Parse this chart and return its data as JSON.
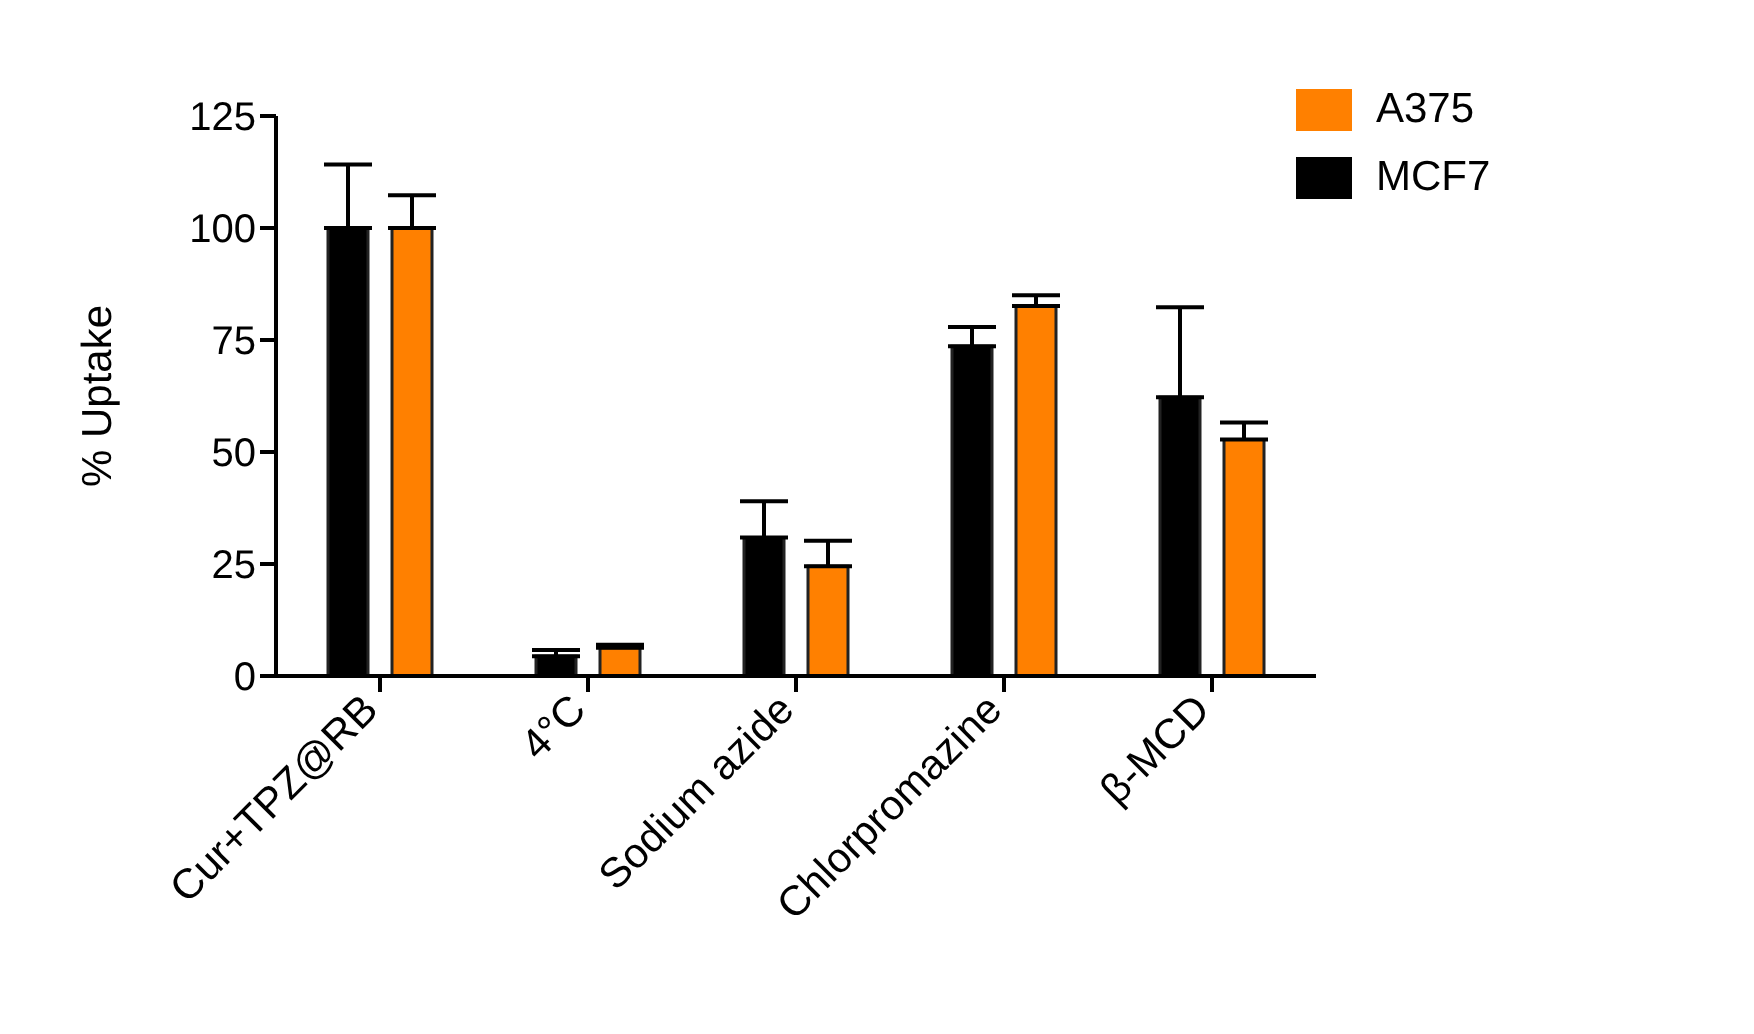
{
  "chart_data": {
    "type": "bar",
    "ylabel": "% Uptake",
    "categories": [
      "Cur+TPZ@RB",
      "4°C",
      "Sodium azide",
      "Chlorpromazine",
      "β-MCD"
    ],
    "series": [
      {
        "name": "MCF7",
        "color": "#000000",
        "values": [
          100,
          4.4,
          30.9,
          73.6,
          62.2
        ],
        "errors": [
          [
            100,
            114.2
          ],
          [
            4.4,
            5.8
          ],
          [
            30.9,
            39
          ],
          [
            73.6,
            77.9
          ],
          [
            62.2,
            82.3
          ]
        ]
      },
      {
        "name": "A375",
        "color": "#ff8000",
        "values": [
          100,
          6.3,
          24.5,
          82.6,
          52.8
        ],
        "errors": [
          [
            100,
            107.3
          ],
          [
            6.3,
            7
          ],
          [
            24.5,
            30.2
          ],
          [
            82.6,
            85
          ],
          [
            52.8,
            56.6
          ]
        ]
      }
    ],
    "ylim": [
      0,
      125
    ],
    "yticks": [
      0,
      25,
      50,
      75,
      100,
      125
    ],
    "grid": false,
    "legend": "top right"
  }
}
